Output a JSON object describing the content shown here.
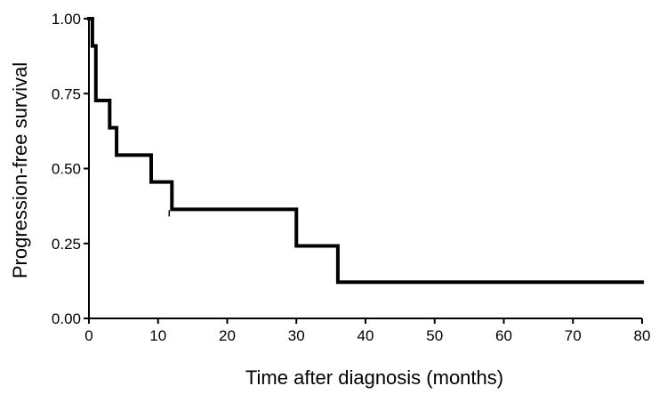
{
  "chart_data": {
    "type": "line",
    "title": "",
    "xlabel": "Time after diagnosis (months)",
    "ylabel": "Progression-free survival",
    "xlim": [
      0,
      80
    ],
    "ylim": [
      0,
      1
    ],
    "xticks": [
      0,
      10,
      20,
      30,
      40,
      50,
      60,
      70,
      80
    ],
    "yticks": [
      0.0,
      0.25,
      0.5,
      0.75,
      1.0
    ],
    "xtick_labels": [
      "0",
      "10",
      "20",
      "30",
      "40",
      "50",
      "60",
      "70",
      "80"
    ],
    "ytick_labels": [
      "0.00",
      "0.25",
      "0.50",
      "0.75",
      "1.00"
    ],
    "grid": false,
    "line_color": "#000000",
    "series": [
      {
        "step": "post",
        "points": [
          {
            "x": 0,
            "y": 1.0
          },
          {
            "x": 0.5,
            "y": 0.909
          },
          {
            "x": 1,
            "y": 0.727
          },
          {
            "x": 3,
            "y": 0.636
          },
          {
            "x": 4,
            "y": 0.545
          },
          {
            "x": 9,
            "y": 0.455
          },
          {
            "x": 12,
            "y": 0.364
          },
          {
            "x": 30,
            "y": 0.242
          },
          {
            "x": 36,
            "y": 0.121
          },
          {
            "x": 80,
            "y": 0.121
          }
        ],
        "censored": [
          {
            "x": 12,
            "y": 0.364
          }
        ]
      }
    ]
  }
}
